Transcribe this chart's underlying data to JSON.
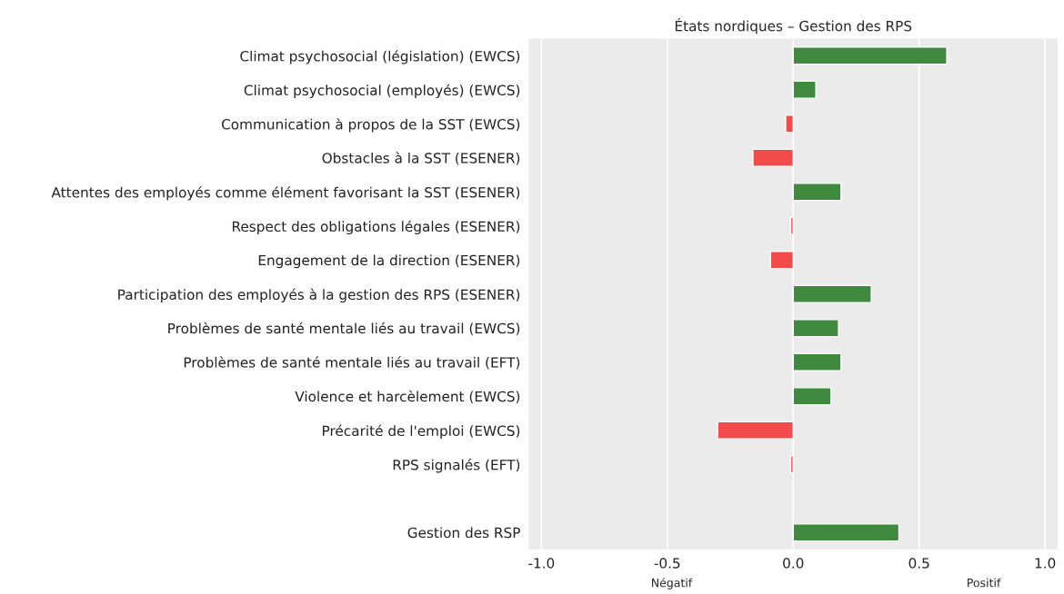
{
  "chart_data": {
    "type": "bar",
    "orientation": "horizontal",
    "title": "États nordiques – Gestion des RPS",
    "categories": [
      "Climat psychosocial (législation) (EWCS)",
      "Climat psychosocial (employés) (EWCS)",
      "Communication à propos de la SST (EWCS)",
      "Obstacles à la SST (ESENER)",
      "Attentes des employés comme élément favorisant la SST (ESENER)",
      "Respect des obligations légales (ESENER)",
      "Engagement de la direction (ESENER)",
      "Participation des employés à la gestion des RPS (ESENER)",
      "Problèmes de santé mentale liés au travail (EWCS)",
      "Problèmes de santé mentale liés au travail (EFT)",
      "Violence et harcèlement (EWCS)",
      "Précarité de l'emploi (EWCS)",
      "RPS signalés (EFT)",
      null,
      "Gestion des RSP"
    ],
    "values": [
      0.61,
      0.09,
      -0.03,
      -0.16,
      0.19,
      -0.01,
      -0.09,
      0.31,
      0.18,
      0.19,
      0.15,
      -0.3,
      -0.01,
      null,
      0.42
    ],
    "colors": [
      "#3f8a3f",
      "#3f8a3f",
      "#f24b4b",
      "#f24b4b",
      "#3f8a3f",
      "#f24b4b",
      "#f24b4b",
      "#3f8a3f",
      "#3f8a3f",
      "#3f8a3f",
      "#3f8a3f",
      "#f24b4b",
      "#f24b4b",
      null,
      "#3f8a3f"
    ],
    "xlim": [
      -1.05,
      1.05
    ],
    "xticks": [
      {
        "value": -1,
        "label": "-1.0"
      },
      {
        "value": -0.5,
        "label": "-0.5"
      },
      {
        "value": 0,
        "label": "0.0"
      },
      {
        "value": 0.5,
        "label": "0.5"
      },
      {
        "value": 1,
        "label": "1.0"
      }
    ],
    "grid": "x",
    "annotations": [
      "Négatif",
      "Positif"
    ]
  }
}
